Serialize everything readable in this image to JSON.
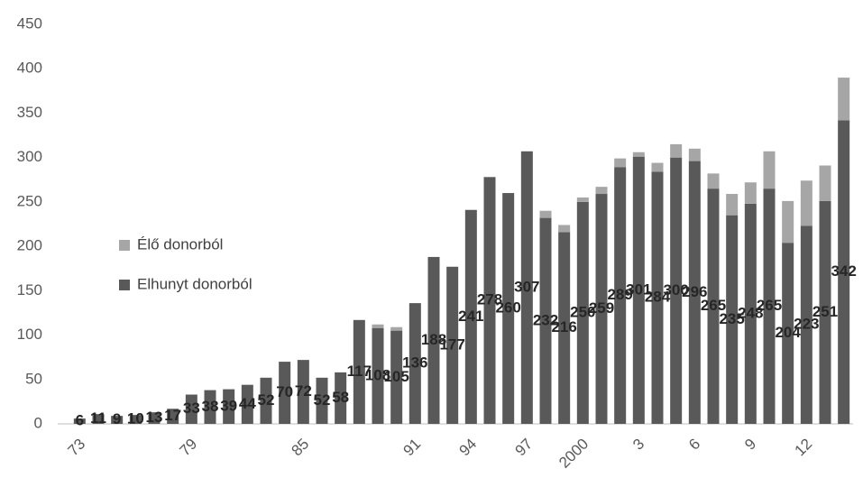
{
  "chart_data": {
    "type": "stacked-bar",
    "categories": [
      "73",
      null,
      null,
      null,
      null,
      null,
      "79",
      null,
      null,
      null,
      null,
      null,
      "85",
      null,
      null,
      null,
      null,
      null,
      "91",
      null,
      null,
      "94",
      null,
      null,
      "97",
      null,
      null,
      "2000",
      null,
      null,
      "3",
      null,
      null,
      "6",
      null,
      null,
      "9",
      null,
      null,
      "12",
      null,
      null
    ],
    "series": [
      {
        "name": "Elhunyt donorból",
        "color": "#595959",
        "values": [
          6,
          11,
          9,
          10,
          13,
          17,
          33,
          38,
          39,
          44,
          52,
          70,
          72,
          52,
          58,
          117,
          108,
          105,
          136,
          188,
          177,
          241,
          278,
          260,
          307,
          232,
          216,
          250,
          259,
          289,
          301,
          284,
          300,
          296,
          265,
          235,
          248,
          265,
          204,
          223,
          251,
          342
        ]
      },
      {
        "name": "Élő donorból",
        "color": "#a6a6a6",
        "values": [
          0,
          0,
          0,
          0,
          0,
          0,
          0,
          0,
          0,
          0,
          0,
          0,
          0,
          0,
          0,
          0,
          4,
          4,
          0,
          0,
          0,
          0,
          0,
          0,
          0,
          8,
          8,
          5,
          8,
          10,
          5,
          10,
          15,
          14,
          17,
          24,
          24,
          42,
          47,
          51,
          40,
          48
        ]
      }
    ],
    "ylim": [
      0,
      450
    ],
    "yticks": [
      0,
      50,
      100,
      150,
      200,
      250,
      300,
      350,
      400,
      450
    ],
    "legend": "left"
  }
}
